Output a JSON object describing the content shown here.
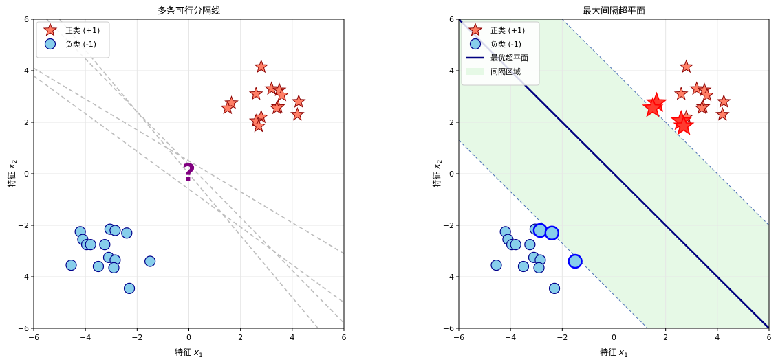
{
  "chart_data": [
    {
      "type": "scatter",
      "title": "多条可行分隔线",
      "xlabel": "特征",
      "xlabel_var": "x",
      "xlabel_sub": "1",
      "ylabel": "特征",
      "ylabel_var": "x",
      "ylabel_sub": "2",
      "xlim": [
        -6,
        6
      ],
      "ylim": [
        -6,
        6
      ],
      "xticks": [
        -6,
        -4,
        -2,
        0,
        2,
        4,
        6
      ],
      "yticks": [
        -6,
        -4,
        -2,
        0,
        2,
        4,
        6
      ],
      "grid": true,
      "legend_position": "top-left",
      "legend": [
        {
          "label": "正类 (+1)",
          "marker": "star"
        },
        {
          "label": "负类 (-1)",
          "marker": "circle"
        }
      ],
      "annotation": {
        "text": "?",
        "x": 0,
        "y": 0,
        "color": "#800080"
      },
      "candidate_lines": [
        {
          "x": [
            -6,
            6
          ],
          "y": [
            4.1,
            -3.1
          ]
        },
        {
          "x": [
            -6,
            6
          ],
          "y": [
            3.8,
            -5.0
          ]
        },
        {
          "x": [
            -5.0,
            5.0
          ],
          "y": [
            6.0,
            -6.0
          ]
        },
        {
          "x": [
            -5.5,
            6.0
          ],
          "y": [
            6.0,
            -5.8
          ]
        }
      ],
      "series": [
        {
          "name": "正类 (+1)",
          "marker": "star",
          "color": "#FF7F66",
          "x": [
            2.8,
            2.6,
            3.2,
            3.5,
            3.6,
            1.65,
            1.5,
            3.45,
            3.4,
            4.25,
            4.2,
            2.8,
            2.6,
            2.7
          ],
          "y": [
            4.15,
            3.1,
            3.3,
            3.25,
            3.05,
            2.75,
            2.55,
            2.6,
            2.55,
            2.8,
            2.3,
            2.2,
            2.05,
            1.85
          ]
        },
        {
          "name": "负类 (-1)",
          "marker": "circle",
          "color": "#87CEEB",
          "x": [
            -4.2,
            -4.1,
            -3.95,
            -3.8,
            -3.05,
            -2.85,
            -2.4,
            -3.25,
            -3.1,
            -2.85,
            -3.5,
            -4.55,
            -2.9,
            -1.5,
            -2.3
          ],
          "y": [
            -2.25,
            -2.55,
            -2.75,
            -2.75,
            -2.15,
            -2.2,
            -2.3,
            -2.75,
            -3.25,
            -3.35,
            -3.6,
            -3.55,
            -3.65,
            -3.4,
            -4.45
          ]
        }
      ]
    },
    {
      "type": "scatter",
      "title": "最大间隔超平面",
      "xlabel": "特征",
      "xlabel_var": "x",
      "xlabel_sub": "1",
      "ylabel": "特征",
      "ylabel_var": "x",
      "ylabel_sub": "2",
      "xlim": [
        -6,
        6
      ],
      "ylim": [
        -6,
        6
      ],
      "xticks": [
        -6,
        -4,
        -2,
        0,
        2,
        4,
        6
      ],
      "yticks": [
        -6,
        -4,
        -2,
        0,
        2,
        4,
        6
      ],
      "grid": true,
      "legend_position": "top-left",
      "legend": [
        {
          "label": "正类 (+1)",
          "marker": "star"
        },
        {
          "label": "负类 (-1)",
          "marker": "circle"
        },
        {
          "label": "最优超平面",
          "marker": "line"
        },
        {
          "label": "间隔区域",
          "marker": "patch"
        }
      ],
      "hyperplane": {
        "x": [
          -6,
          6
        ],
        "y": [
          6,
          -6
        ],
        "color": "#000080"
      },
      "margin_upper": {
        "x": [
          -2.0,
          6.0
        ],
        "y": [
          6.0,
          -2.0
        ]
      },
      "margin_lower": {
        "x": [
          -6.0,
          1.3
        ],
        "y": [
          1.3,
          -6.0
        ]
      },
      "margin_fill_color": "#E6F9E6",
      "support_vectors_pos": {
        "x": [
          1.65,
          1.5,
          2.6,
          2.7
        ],
        "y": [
          2.75,
          2.55,
          2.05,
          1.85
        ]
      },
      "support_vectors_neg": {
        "x": [
          -2.85,
          -2.4,
          -1.5
        ],
        "y": [
          -2.2,
          -2.3,
          -3.4
        ]
      },
      "series": [
        {
          "name": "正类 (+1)",
          "marker": "star",
          "color": "#FF7F66",
          "x": [
            2.8,
            2.6,
            3.2,
            3.5,
            3.6,
            1.65,
            1.5,
            3.45,
            3.4,
            4.25,
            4.2,
            2.8,
            2.6,
            2.7
          ],
          "y": [
            4.15,
            3.1,
            3.3,
            3.25,
            3.05,
            2.75,
            2.55,
            2.6,
            2.55,
            2.8,
            2.3,
            2.2,
            2.05,
            1.85
          ]
        },
        {
          "name": "负类 (-1)",
          "marker": "circle",
          "color": "#87CEEB",
          "x": [
            -4.2,
            -4.1,
            -3.95,
            -3.8,
            -3.05,
            -2.85,
            -2.4,
            -3.25,
            -3.1,
            -2.85,
            -3.5,
            -4.55,
            -2.9,
            -1.5,
            -2.3
          ],
          "y": [
            -2.25,
            -2.55,
            -2.75,
            -2.75,
            -2.15,
            -2.2,
            -2.3,
            -2.75,
            -3.25,
            -3.35,
            -3.6,
            -3.55,
            -3.65,
            -3.4,
            -4.45
          ]
        }
      ]
    }
  ]
}
